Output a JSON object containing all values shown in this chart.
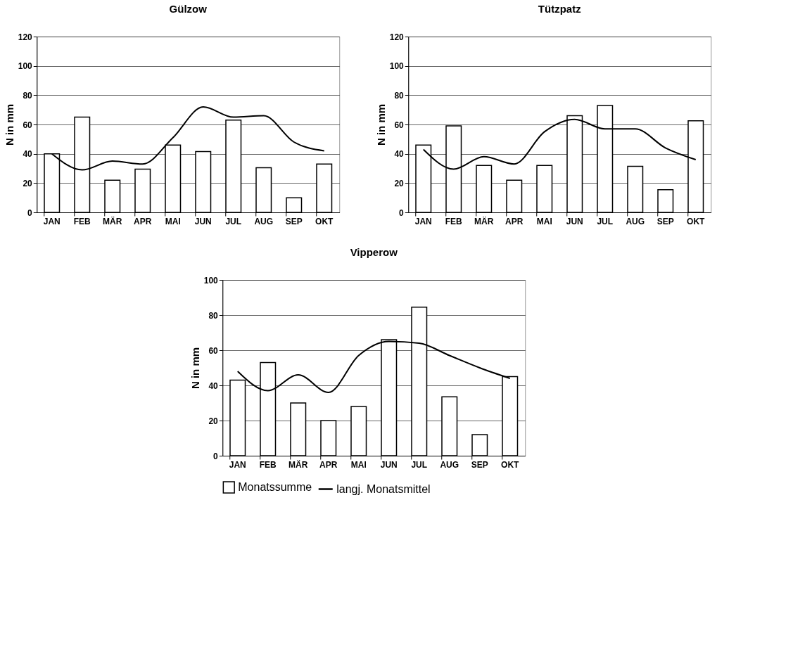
{
  "chart_data": [
    {
      "type": "bar",
      "title": "Gülzow",
      "ylabel": "N in mm",
      "categories": [
        "JAN",
        "FEB",
        "MÄR",
        "APR",
        "MAI",
        "JUN",
        "JUL",
        "AUG",
        "SEP",
        "OKT"
      ],
      "ylim": [
        0,
        120
      ],
      "yticks": [
        0,
        20,
        40,
        60,
        80,
        100,
        120
      ],
      "grid": "y",
      "legend": false,
      "series": [
        {
          "color": "#ffffff",
          "values": [
            40,
            65,
            22,
            29.5,
            46,
            41.5,
            63,
            30.5,
            10,
            33
          ]
        },
        {
          "type": "line",
          "color": "#000000",
          "values": [
            40,
            29,
            35,
            33,
            51,
            72,
            65,
            66,
            48,
            42
          ]
        }
      ]
    },
    {
      "type": "bar",
      "title": "Tützpatz",
      "ylabel": "N in mm",
      "categories": [
        "JAN",
        "FEB",
        "MÄR",
        "APR",
        "MAI",
        "JUN",
        "JUL",
        "AUG",
        "SEP",
        "OKT"
      ],
      "ylim": [
        0,
        120
      ],
      "yticks": [
        0,
        20,
        40,
        60,
        80,
        100,
        120
      ],
      "grid": "y",
      "legend": false,
      "series": [
        {
          "color": "#ffffff",
          "values": [
            46,
            59,
            32,
            22,
            32,
            66,
            73,
            31.5,
            15.5,
            62.5
          ]
        },
        {
          "type": "line",
          "color": "#000000",
          "values": [
            43,
            29.5,
            38,
            33,
            55,
            63.5,
            57,
            57,
            44,
            36
          ]
        }
      ]
    },
    {
      "type": "bar",
      "title": "Vipperow",
      "ylabel": "N in mm",
      "categories": [
        "JAN",
        "FEB",
        "MÄR",
        "APR",
        "MAI",
        "JUN",
        "JUL",
        "AUG",
        "SEP",
        "OKT"
      ],
      "ylim": [
        0,
        100
      ],
      "yticks": [
        0,
        20,
        40,
        60,
        80,
        100
      ],
      "grid": "y",
      "legend": "bottom",
      "series": [
        {
          "name": "Monatssumme",
          "color": "#ffffff",
          "values": [
            43,
            53,
            30,
            20,
            28,
            66,
            84.5,
            33.5,
            12,
            45
          ]
        },
        {
          "type": "line",
          "name": "langj. Monatsmittel",
          "color": "#000000",
          "values": [
            48,
            37,
            46,
            36,
            57,
            65,
            64,
            57,
            50,
            44
          ]
        }
      ]
    }
  ]
}
